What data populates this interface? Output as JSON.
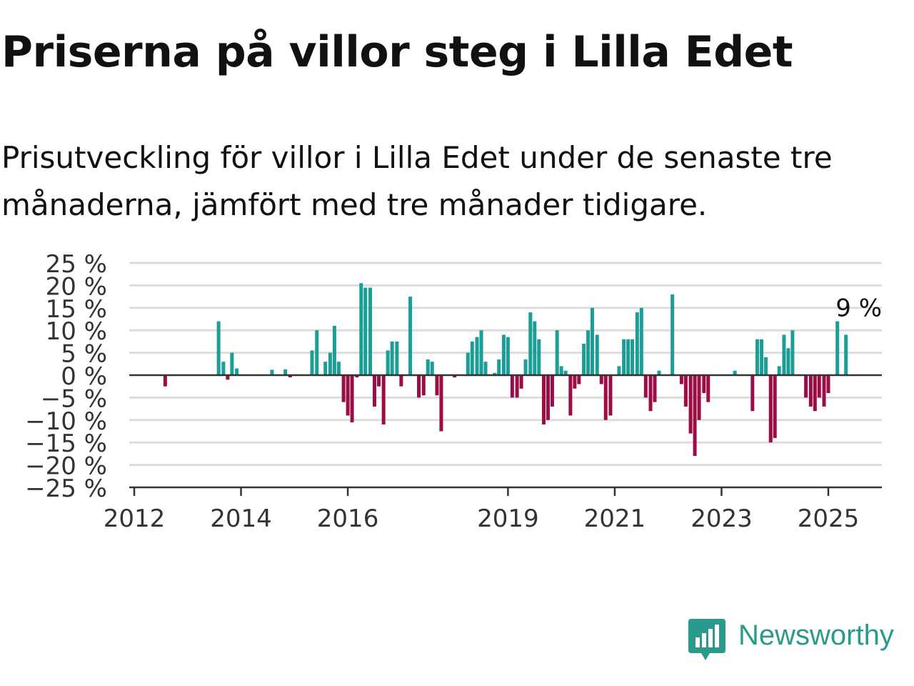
{
  "title": "Priserna på villor steg i Lilla Edet",
  "subtitle": "Prisutveckling för villor i Lilla Edet under de senaste tre månaderna, jämfört med tre månader tidigare.",
  "brand": {
    "name": "Newsworthy"
  },
  "colors": {
    "positive": "#1a9e95",
    "negative": "#9b0e45",
    "grid": "#dddddd",
    "axis": "#333333",
    "brand": "#2a9a8c"
  },
  "chart_data": {
    "type": "bar",
    "title": "",
    "xlabel": "",
    "ylabel": "",
    "ylim": [
      -25,
      25
    ],
    "y_ticks": [
      25,
      20,
      15,
      10,
      5,
      0,
      -5,
      -10,
      -15,
      -20,
      -25
    ],
    "y_tick_labels": [
      "25 %",
      "20 %",
      "15 %",
      "10 %",
      "5 %",
      "0 %",
      "−5 %",
      "−10 %",
      "−15 %",
      "−20 %",
      "−25 %"
    ],
    "x_ticks": [
      2012,
      2014,
      2016,
      2019,
      2021,
      2023,
      2025
    ],
    "x_tick_labels": [
      "2012",
      "2014",
      "2016",
      "2019",
      "2021",
      "2023",
      "2025"
    ],
    "annotation": {
      "text": "9 %",
      "x": 2025.33,
      "y": 9
    },
    "points": [
      {
        "x": 2012.58,
        "y": -2.5
      },
      {
        "x": 2013.58,
        "y": 12
      },
      {
        "x": 2013.67,
        "y": 3
      },
      {
        "x": 2013.75,
        "y": -1
      },
      {
        "x": 2013.83,
        "y": 5
      },
      {
        "x": 2013.92,
        "y": 1.5
      },
      {
        "x": 2014.58,
        "y": 1.2
      },
      {
        "x": 2014.83,
        "y": 1.3
      },
      {
        "x": 2014.92,
        "y": -0.5
      },
      {
        "x": 2015.33,
        "y": 5.5
      },
      {
        "x": 2015.42,
        "y": 10
      },
      {
        "x": 2015.58,
        "y": 3
      },
      {
        "x": 2015.67,
        "y": 5
      },
      {
        "x": 2015.75,
        "y": 11
      },
      {
        "x": 2015.83,
        "y": 3
      },
      {
        "x": 2015.92,
        "y": -6
      },
      {
        "x": 2016.0,
        "y": -9
      },
      {
        "x": 2016.08,
        "y": -10.5
      },
      {
        "x": 2016.17,
        "y": -0.5
      },
      {
        "x": 2016.25,
        "y": 20.5
      },
      {
        "x": 2016.33,
        "y": 19.5
      },
      {
        "x": 2016.42,
        "y": 19.5
      },
      {
        "x": 2016.5,
        "y": -7
      },
      {
        "x": 2016.58,
        "y": -2.5
      },
      {
        "x": 2016.67,
        "y": -11
      },
      {
        "x": 2016.75,
        "y": 5.5
      },
      {
        "x": 2016.83,
        "y": 7.5
      },
      {
        "x": 2016.92,
        "y": 7.5
      },
      {
        "x": 2017.0,
        "y": -2.5
      },
      {
        "x": 2017.17,
        "y": 17.5
      },
      {
        "x": 2017.5,
        "y": 3.5
      },
      {
        "x": 2017.58,
        "y": 3
      },
      {
        "x": 2017.42,
        "y": -4.5
      },
      {
        "x": 2017.33,
        "y": -5
      },
      {
        "x": 2017.75,
        "y": -12.5
      },
      {
        "x": 2017.67,
        "y": -4.5
      },
      {
        "x": 2018.0,
        "y": -0.5
      },
      {
        "x": 2018.25,
        "y": 5
      },
      {
        "x": 2018.33,
        "y": 7.5
      },
      {
        "x": 2018.42,
        "y": 8.5
      },
      {
        "x": 2018.5,
        "y": 10
      },
      {
        "x": 2018.58,
        "y": 3
      },
      {
        "x": 2018.75,
        "y": 0.5
      },
      {
        "x": 2018.83,
        "y": 3.5
      },
      {
        "x": 2018.92,
        "y": 9
      },
      {
        "x": 2019.0,
        "y": 8.5
      },
      {
        "x": 2019.08,
        "y": -5
      },
      {
        "x": 2019.17,
        "y": -5
      },
      {
        "x": 2019.25,
        "y": -3
      },
      {
        "x": 2019.33,
        "y": 3.5
      },
      {
        "x": 2019.42,
        "y": 14
      },
      {
        "x": 2019.5,
        "y": 12
      },
      {
        "x": 2019.58,
        "y": 8
      },
      {
        "x": 2019.67,
        "y": -11
      },
      {
        "x": 2019.75,
        "y": -10
      },
      {
        "x": 2019.83,
        "y": -7
      },
      {
        "x": 2019.92,
        "y": 10
      },
      {
        "x": 2020.0,
        "y": 2
      },
      {
        "x": 2020.08,
        "y": 1
      },
      {
        "x": 2020.17,
        "y": -9
      },
      {
        "x": 2020.25,
        "y": -3
      },
      {
        "x": 2020.33,
        "y": -2
      },
      {
        "x": 2020.42,
        "y": 7
      },
      {
        "x": 2020.5,
        "y": 10
      },
      {
        "x": 2020.58,
        "y": 15
      },
      {
        "x": 2020.67,
        "y": 9
      },
      {
        "x": 2020.75,
        "y": -2
      },
      {
        "x": 2020.83,
        "y": -10
      },
      {
        "x": 2020.92,
        "y": -9
      },
      {
        "x": 2021.08,
        "y": 2
      },
      {
        "x": 2021.17,
        "y": 8
      },
      {
        "x": 2021.25,
        "y": 8
      },
      {
        "x": 2021.33,
        "y": 8
      },
      {
        "x": 2021.42,
        "y": 14
      },
      {
        "x": 2021.5,
        "y": 15
      },
      {
        "x": 2021.58,
        "y": -5
      },
      {
        "x": 2021.67,
        "y": -8
      },
      {
        "x": 2021.75,
        "y": -6
      },
      {
        "x": 2021.83,
        "y": 1
      },
      {
        "x": 2022.08,
        "y": 18
      },
      {
        "x": 2022.25,
        "y": -2
      },
      {
        "x": 2022.33,
        "y": -7
      },
      {
        "x": 2022.42,
        "y": -13
      },
      {
        "x": 2022.5,
        "y": -18
      },
      {
        "x": 2022.58,
        "y": -10
      },
      {
        "x": 2022.67,
        "y": -4
      },
      {
        "x": 2022.75,
        "y": -6
      },
      {
        "x": 2023.25,
        "y": 1
      },
      {
        "x": 2023.58,
        "y": -8
      },
      {
        "x": 2023.67,
        "y": 8
      },
      {
        "x": 2023.75,
        "y": 8
      },
      {
        "x": 2023.83,
        "y": 4
      },
      {
        "x": 2023.92,
        "y": -15
      },
      {
        "x": 2024.0,
        "y": -14
      },
      {
        "x": 2024.08,
        "y": 2
      },
      {
        "x": 2024.17,
        "y": 9
      },
      {
        "x": 2024.25,
        "y": 6
      },
      {
        "x": 2024.33,
        "y": 10
      },
      {
        "x": 2024.58,
        "y": -5
      },
      {
        "x": 2024.67,
        "y": -7
      },
      {
        "x": 2024.75,
        "y": -8
      },
      {
        "x": 2024.83,
        "y": -5
      },
      {
        "x": 2024.92,
        "y": -7
      },
      {
        "x": 2025.0,
        "y": -4
      },
      {
        "x": 2025.17,
        "y": 12
      },
      {
        "x": 2025.33,
        "y": 9
      }
    ]
  }
}
